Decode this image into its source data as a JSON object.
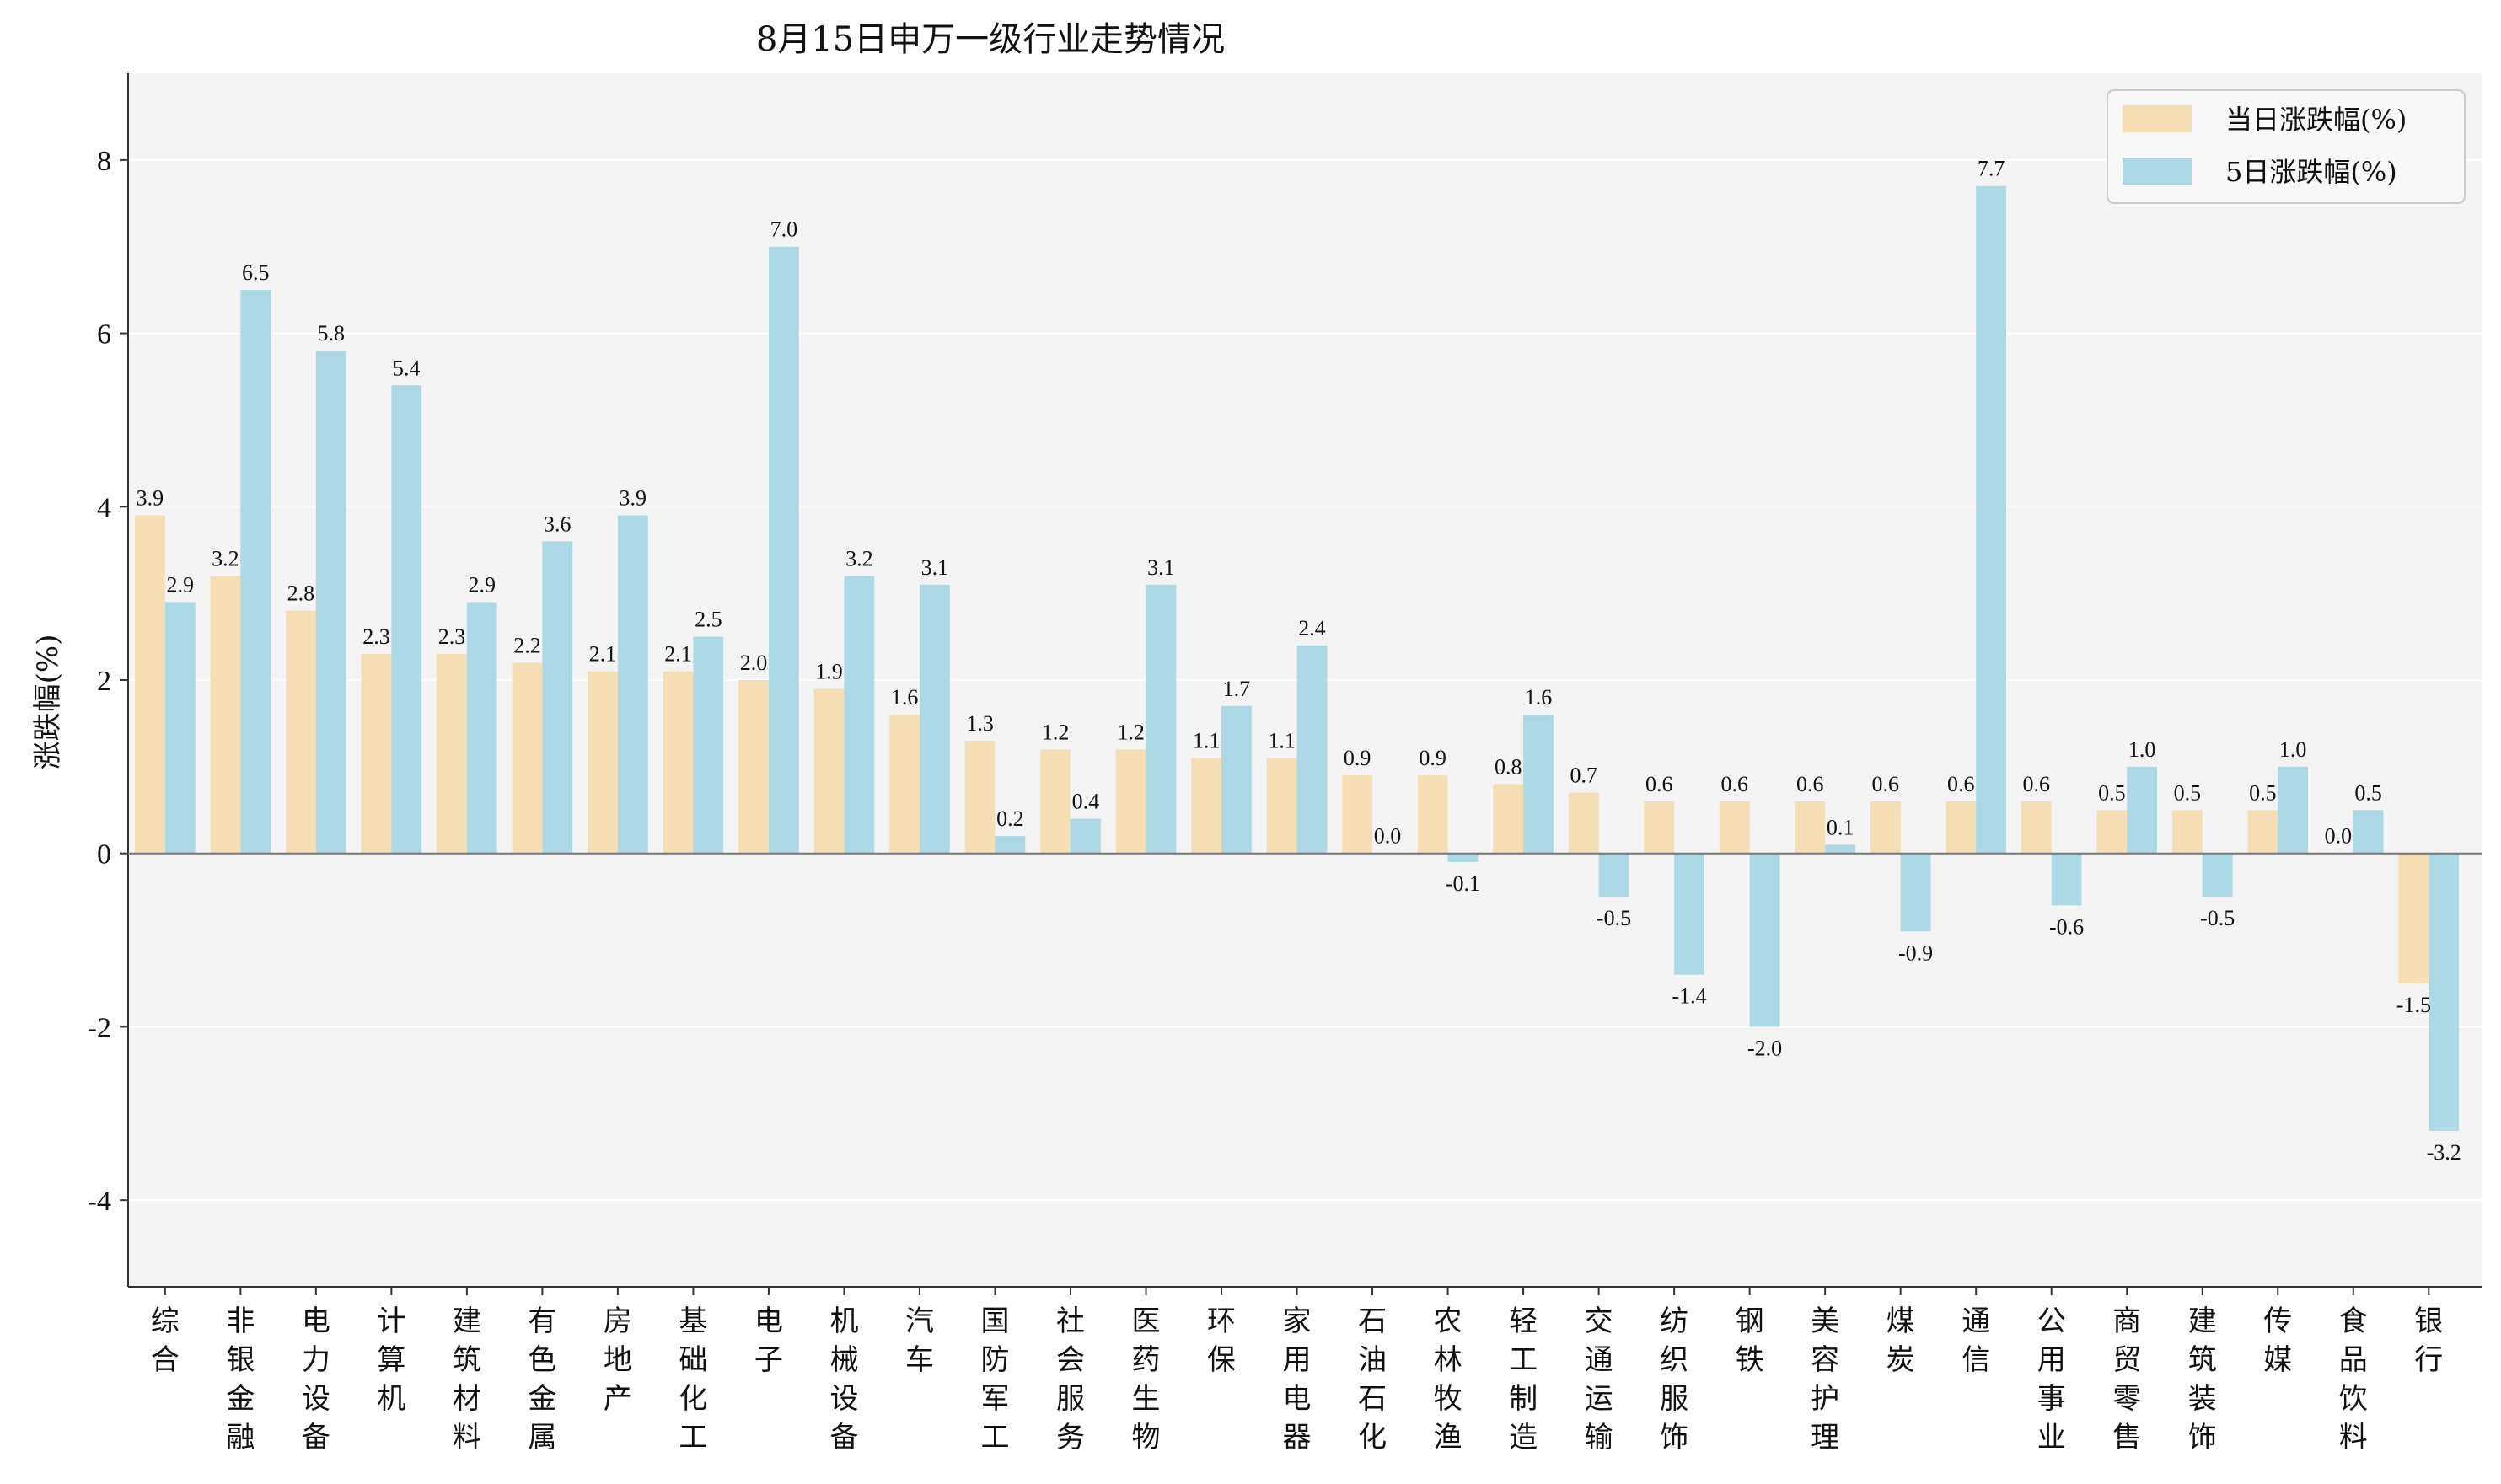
{
  "chart_data": {
    "type": "bar",
    "title": "8月15日申万一级行业走势情况",
    "xlabel": "",
    "ylabel": "涨跌幅(%)",
    "ylim": [
      -5,
      9
    ],
    "yticks": [
      -4,
      -2,
      0,
      2,
      4,
      6,
      8
    ],
    "grid": true,
    "legend_position": "top-right",
    "categories": [
      "综合",
      "非银金融",
      "电力设备",
      "计算机",
      "建筑材料",
      "有色金属",
      "房地产",
      "基础化工",
      "电子",
      "机械设备",
      "汽车",
      "国防军工",
      "社会服务",
      "医药生物",
      "环保",
      "家用电器",
      "石油石化",
      "农林牧渔",
      "轻工制造",
      "交通运输",
      "纺织服饰",
      "钢铁",
      "美容护理",
      "煤炭",
      "通信",
      "公用事业",
      "商贸零售",
      "建筑装饰",
      "传媒",
      "食品饮料",
      "银行"
    ],
    "series": [
      {
        "name": "当日涨跌幅(%)",
        "color": "#f5deb3",
        "values": [
          3.9,
          3.2,
          2.8,
          2.3,
          2.3,
          2.2,
          2.1,
          2.1,
          2.0,
          1.9,
          1.6,
          1.3,
          1.2,
          1.2,
          1.1,
          1.1,
          0.9,
          0.9,
          0.8,
          0.7,
          0.6,
          0.6,
          0.6,
          0.6,
          0.6,
          0.6,
          0.5,
          0.5,
          0.5,
          0.0,
          -1.5
        ]
      },
      {
        "name": "5日涨跌幅(%)",
        "color": "#add8e6",
        "values": [
          2.9,
          6.5,
          5.8,
          5.4,
          2.9,
          3.6,
          3.9,
          2.5,
          7.0,
          3.2,
          3.1,
          0.2,
          0.4,
          3.1,
          1.7,
          2.4,
          0.0,
          -0.1,
          1.6,
          -0.5,
          -1.4,
          -2.0,
          0.1,
          -0.9,
          7.7,
          -0.6,
          1.0,
          -0.5,
          1.0,
          0.5,
          -3.2
        ]
      }
    ]
  }
}
